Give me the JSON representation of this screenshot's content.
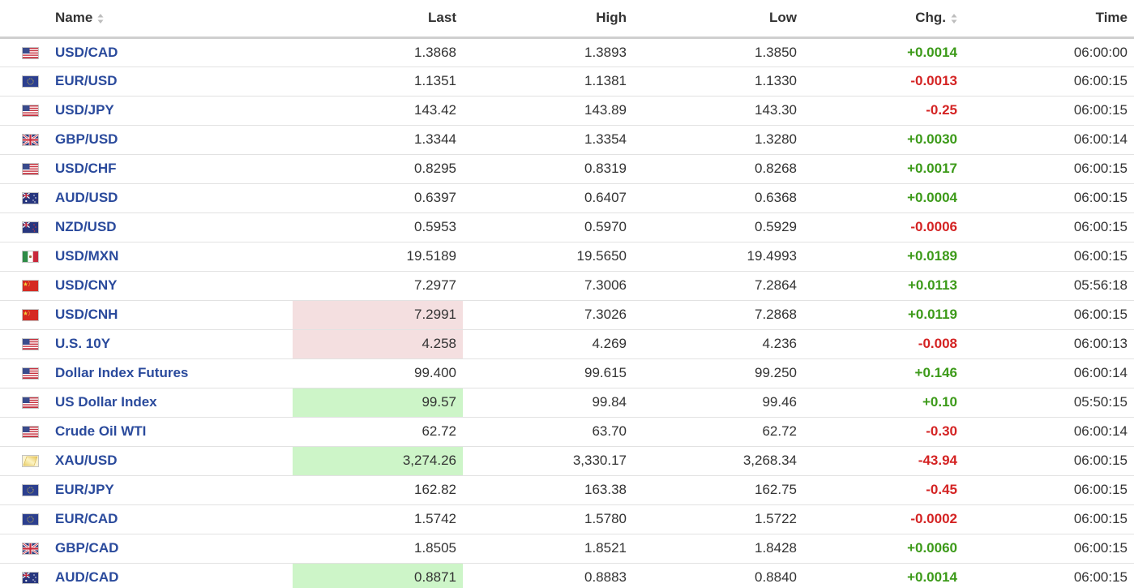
{
  "headers": {
    "name": "Name",
    "last": "Last",
    "high": "High",
    "low": "Low",
    "chg": "Chg.",
    "time": "Time"
  },
  "colors": {
    "up": "#3c9a19",
    "down": "#d42323",
    "link": "#2a4a9c",
    "highlight_red": "#f4dfe0",
    "highlight_green": "#cdf5c8"
  },
  "rows": [
    {
      "flag": "us-flag-icon",
      "name": "USD/CAD",
      "last": "1.3868",
      "high": "1.3893",
      "low": "1.3850",
      "chg": "+0.0014",
      "dir": "up",
      "time": "06:00:00",
      "hl": ""
    },
    {
      "flag": "eu-flag-icon",
      "name": "EUR/USD",
      "last": "1.1351",
      "high": "1.1381",
      "low": "1.1330",
      "chg": "-0.0013",
      "dir": "down",
      "time": "06:00:15",
      "hl": ""
    },
    {
      "flag": "us-flag-icon",
      "name": "USD/JPY",
      "last": "143.42",
      "high": "143.89",
      "low": "143.30",
      "chg": "-0.25",
      "dir": "down",
      "time": "06:00:15",
      "hl": ""
    },
    {
      "flag": "uk-flag-icon",
      "name": "GBP/USD",
      "last": "1.3344",
      "high": "1.3354",
      "low": "1.3280",
      "chg": "+0.0030",
      "dir": "up",
      "time": "06:00:14",
      "hl": ""
    },
    {
      "flag": "us-flag-icon",
      "name": "USD/CHF",
      "last": "0.8295",
      "high": "0.8319",
      "low": "0.8268",
      "chg": "+0.0017",
      "dir": "up",
      "time": "06:00:15",
      "hl": ""
    },
    {
      "flag": "au-flag-icon",
      "name": "AUD/USD",
      "last": "0.6397",
      "high": "0.6407",
      "low": "0.6368",
      "chg": "+0.0004",
      "dir": "up",
      "time": "06:00:15",
      "hl": ""
    },
    {
      "flag": "nz-flag-icon",
      "name": "NZD/USD",
      "last": "0.5953",
      "high": "0.5970",
      "low": "0.5929",
      "chg": "-0.0006",
      "dir": "down",
      "time": "06:00:15",
      "hl": ""
    },
    {
      "flag": "mx-flag-icon",
      "name": "USD/MXN",
      "last": "19.5189",
      "high": "19.5650",
      "low": "19.4993",
      "chg": "+0.0189",
      "dir": "up",
      "time": "06:00:15",
      "hl": ""
    },
    {
      "flag": "cn-flag-icon",
      "name": "USD/CNY",
      "last": "7.2977",
      "high": "7.3006",
      "low": "7.2864",
      "chg": "+0.0113",
      "dir": "up",
      "time": "05:56:18",
      "hl": ""
    },
    {
      "flag": "cn-flag-icon",
      "name": "USD/CNH",
      "last": "7.2991",
      "high": "7.3026",
      "low": "7.2868",
      "chg": "+0.0119",
      "dir": "up",
      "time": "06:00:15",
      "hl": "red"
    },
    {
      "flag": "us-flag-icon",
      "name": "U.S. 10Y",
      "last": "4.258",
      "high": "4.269",
      "low": "4.236",
      "chg": "-0.008",
      "dir": "down",
      "time": "06:00:13",
      "hl": "red"
    },
    {
      "flag": "us-flag-icon",
      "name": "Dollar Index Futures",
      "last": "99.400",
      "high": "99.615",
      "low": "99.250",
      "chg": "+0.146",
      "dir": "up",
      "time": "06:00:14",
      "hl": ""
    },
    {
      "flag": "us-flag-icon",
      "name": "US Dollar Index",
      "last": "99.57",
      "high": "99.84",
      "low": "99.46",
      "chg": "+0.10",
      "dir": "up",
      "time": "05:50:15",
      "hl": "green"
    },
    {
      "flag": "us-flag-icon",
      "name": "Crude Oil WTI",
      "last": "62.72",
      "high": "63.70",
      "low": "62.72",
      "chg": "-0.30",
      "dir": "down",
      "time": "06:00:14",
      "hl": ""
    },
    {
      "flag": "gold-icon",
      "name": "XAU/USD",
      "last": "3,274.26",
      "high": "3,330.17",
      "low": "3,268.34",
      "chg": "-43.94",
      "dir": "down",
      "time": "06:00:15",
      "hl": "green"
    },
    {
      "flag": "eu-flag-icon",
      "name": "EUR/JPY",
      "last": "162.82",
      "high": "163.38",
      "low": "162.75",
      "chg": "-0.45",
      "dir": "down",
      "time": "06:00:15",
      "hl": ""
    },
    {
      "flag": "eu-flag-icon",
      "name": "EUR/CAD",
      "last": "1.5742",
      "high": "1.5780",
      "low": "1.5722",
      "chg": "-0.0002",
      "dir": "down",
      "time": "06:00:15",
      "hl": ""
    },
    {
      "flag": "uk-flag-icon",
      "name": "GBP/CAD",
      "last": "1.8505",
      "high": "1.8521",
      "low": "1.8428",
      "chg": "+0.0060",
      "dir": "up",
      "time": "06:00:15",
      "hl": ""
    },
    {
      "flag": "au-flag-icon",
      "name": "AUD/CAD",
      "last": "0.8871",
      "high": "0.8883",
      "low": "0.8840",
      "chg": "+0.0014",
      "dir": "up",
      "time": "06:00:15",
      "hl": "green"
    }
  ]
}
